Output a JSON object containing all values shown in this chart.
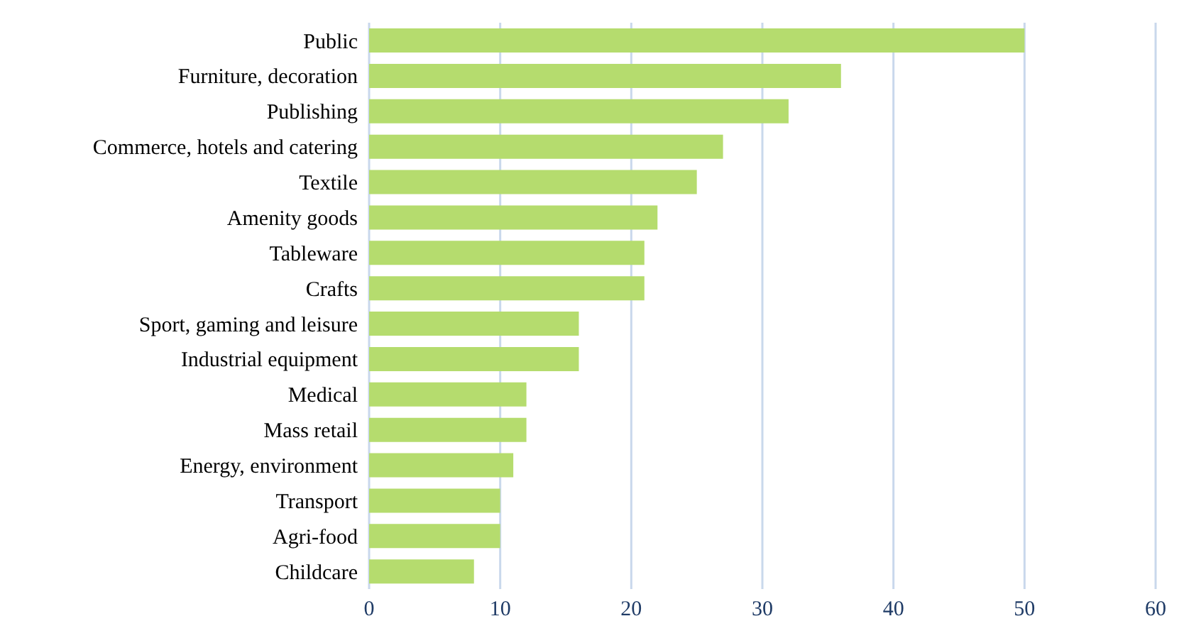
{
  "chart_data": {
    "type": "bar",
    "orientation": "horizontal",
    "categories": [
      "Public",
      "Furniture, decoration",
      "Publishing",
      "Commerce, hotels and catering",
      "Textile",
      "Amenity goods",
      "Tableware",
      "Crafts",
      "Sport, gaming and leisure",
      "Industrial equipment",
      "Medical",
      "Mass retail",
      "Energy, environment",
      "Transport",
      "Agri-food",
      "Childcare"
    ],
    "values": [
      50,
      36,
      32,
      27,
      25,
      22,
      21,
      21,
      16,
      16,
      12,
      12,
      11,
      10,
      10,
      8
    ],
    "color": "#b5dc6e",
    "xlim": [
      0,
      60
    ],
    "xticks": [
      0,
      10,
      20,
      30,
      40,
      50,
      60
    ],
    "grid": "x"
  }
}
